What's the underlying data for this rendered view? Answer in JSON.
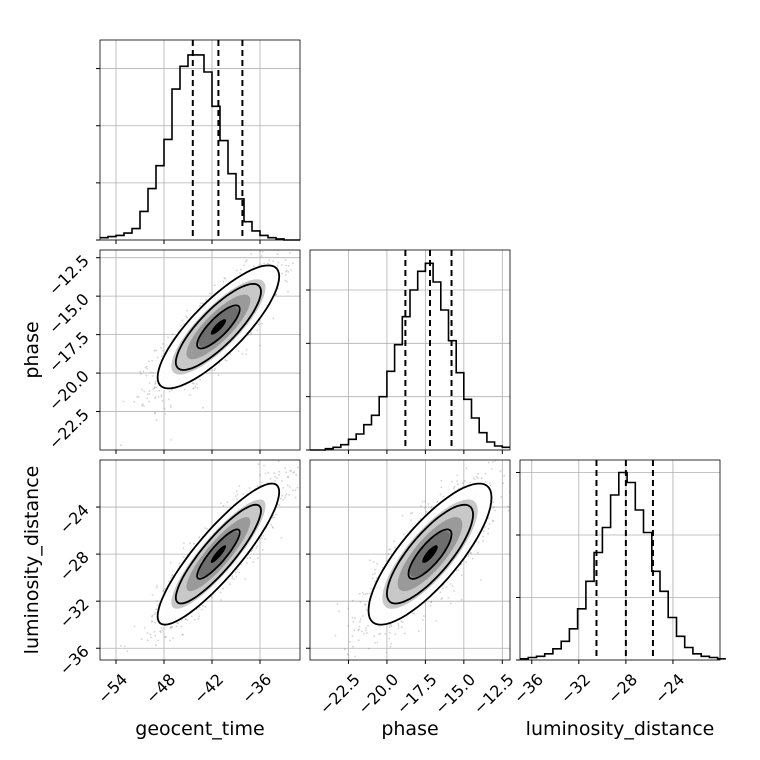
{
  "chart_data": {
    "type": "corner",
    "parameters": [
      "geocent_time",
      "phase",
      "luminosity_distance"
    ],
    "ticks": {
      "geocent_time": {
        "range": [
          -56,
          -31
        ],
        "values": [
          -54,
          -48,
          -42,
          -36
        ],
        "labels": [
          "−54",
          "−48",
          "−42",
          "−36"
        ]
      },
      "phase": {
        "range": [
          -25,
          -12
        ],
        "values": [
          -22.5,
          -20.0,
          -17.5,
          -15.0,
          -12.5
        ],
        "labels": [
          "−22.5",
          "−20.0",
          "−17.5",
          "−15.0",
          "−12.5"
        ]
      },
      "luminosity_distance": {
        "range": [
          -37,
          -20
        ],
        "values": [
          -36,
          -32,
          -28,
          -24
        ],
        "labels": [
          "−36",
          "−32",
          "−28",
          "−24"
        ]
      }
    },
    "diagonal": [
      {
        "param": "geocent_time",
        "bins": [
          -56,
          -55,
          -54,
          -53,
          -52,
          -51,
          -50,
          -49,
          -48,
          -47,
          -46,
          -45,
          -44,
          -43,
          -42,
          -41,
          -40,
          -39,
          -38,
          -37,
          -36,
          -35,
          -34,
          -33,
          -32,
          -31
        ],
        "counts": [
          2,
          3,
          4,
          6,
          10,
          25,
          45,
          65,
          88,
          132,
          152,
          162,
          162,
          147,
          117,
          87,
          58,
          36,
          16,
          8,
          4,
          2,
          1,
          0,
          0
        ],
        "quantiles": [
          -44.4,
          -41.2,
          -38.2
        ],
        "ymax": 175,
        "ytick_values": [
          0,
          50,
          100,
          150
        ]
      },
      {
        "param": "phase",
        "bins": [
          -25,
          -24.5,
          -24,
          -23.5,
          -23,
          -22.5,
          -22,
          -21.5,
          -21,
          -20.5,
          -20,
          -19.5,
          -19,
          -18.5,
          -18,
          -17.5,
          -17,
          -16.5,
          -16,
          -15.5,
          -15,
          -14.5,
          -14,
          -13.5,
          -13,
          -12.5,
          -12
        ],
        "counts": [
          0,
          0,
          1,
          2,
          4,
          8,
          12,
          19,
          26,
          40,
          59,
          79,
          100,
          120,
          134,
          140,
          126,
          105,
          82,
          58,
          38,
          24,
          13,
          6,
          3,
          2
        ],
        "quantiles": [
          -18.8,
          -17.2,
          -15.8
        ],
        "ymax": 150,
        "ytick_values": [
          0,
          40,
          80,
          120
        ]
      },
      {
        "param": "luminosity_distance",
        "bins": [
          -37,
          -36.3,
          -35.6,
          -34.9,
          -34.2,
          -33.5,
          -32.8,
          -32.1,
          -31.4,
          -30.7,
          -30,
          -29.3,
          -28.6,
          -27.9,
          -27.2,
          -26.5,
          -25.8,
          -25.1,
          -24.4,
          -23.7,
          -23,
          -22.3,
          -21.6,
          -20.9,
          -20.2,
          -19.5
        ],
        "counts": [
          1,
          2,
          3,
          5,
          9,
          15,
          25,
          41,
          63,
          86,
          106,
          132,
          150,
          142,
          120,
          102,
          71,
          55,
          34,
          19,
          10,
          5,
          3,
          2,
          1
        ],
        "quantiles": [
          -30.5,
          -28.0,
          -25.7
        ],
        "ymax": 160,
        "ytick_values": [
          0,
          50,
          100,
          150
        ]
      }
    ],
    "pairs": [
      {
        "x": "geocent_time",
        "y": "phase",
        "center": [
          -41.2,
          -17.0
        ],
        "sigma": [
          3.8,
          2.0
        ],
        "correlation": 0.82
      },
      {
        "x": "geocent_time",
        "y": "luminosity_distance",
        "center": [
          -41.2,
          -28.0
        ],
        "sigma": [
          3.8,
          3.0
        ],
        "correlation": 0.88
      },
      {
        "x": "phase",
        "y": "luminosity_distance",
        "center": [
          -17.2,
          -28.0
        ],
        "sigma": [
          2.0,
          3.0
        ],
        "correlation": 0.8
      }
    ],
    "grid": true,
    "colors": {
      "line": "#000000",
      "grid": "#b0b0b0",
      "points": "#808080",
      "fill_dark": "#000000",
      "fill_mid": "#6e6e6e",
      "fill_light": "#c8c8c8"
    }
  }
}
